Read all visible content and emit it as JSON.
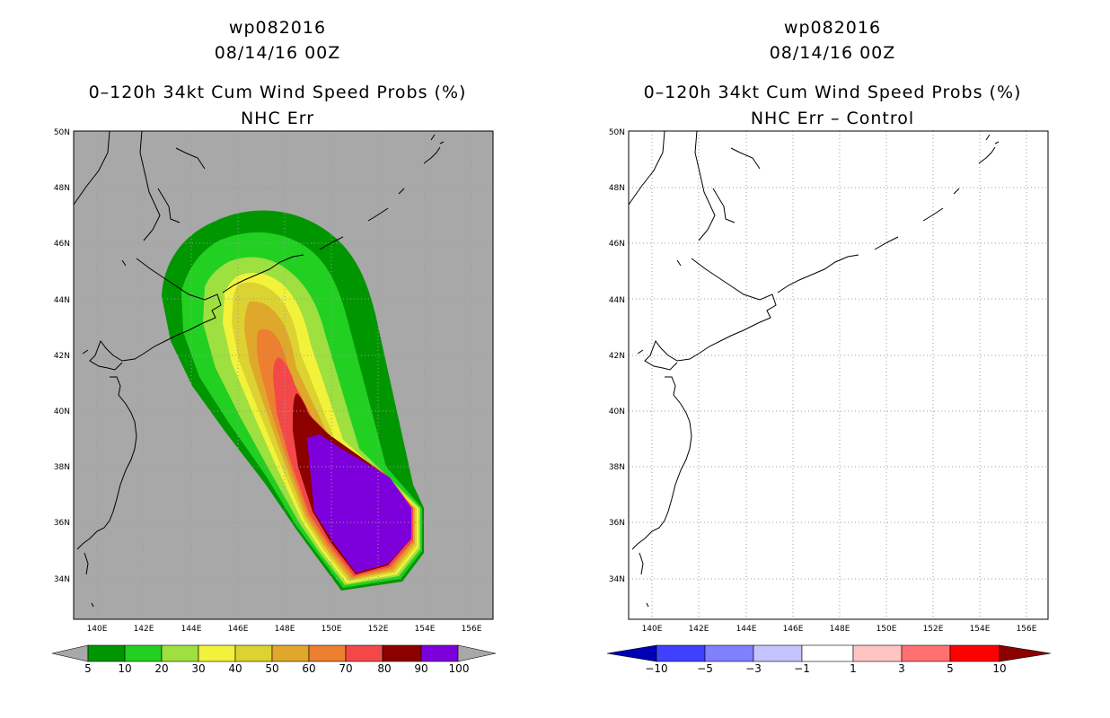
{
  "left": {
    "title_line1": "wp082016",
    "title_line2": "08/14/16 00Z",
    "title_line3": "0–120h 34kt Cum Wind Speed Probs (%)",
    "title_line4": "NHC Err",
    "colorbar": {
      "levels": [
        "5",
        "10",
        "20",
        "30",
        "40",
        "50",
        "60",
        "70",
        "80",
        "90",
        "100"
      ],
      "colors": [
        "#009600",
        "#22d022",
        "#9ee040",
        "#f2f23a",
        "#dcd232",
        "#e0a82a",
        "#ec8030",
        "#f44848",
        "#8c0000",
        "#7d00dc"
      ]
    }
  },
  "right": {
    "title_line1": "wp082016",
    "title_line2": "08/14/16 00Z",
    "title_line3": "0–120h 34kt Cum Wind Speed Probs (%)",
    "title_line4": "NHC Err – Control",
    "colorbar": {
      "levels": [
        "−10",
        "−5",
        "−3",
        "−1",
        "1",
        "3",
        "5",
        "10"
      ],
      "colors": [
        "#0000b4",
        "#4040ff",
        "#8080ff",
        "#c4c4ff",
        "#ffffff",
        "#ffc4c4",
        "#ff7070",
        "#ff0000",
        "#8c0000"
      ]
    }
  },
  "axes": {
    "lon_labels": [
      "140E",
      "142E",
      "144E",
      "146E",
      "148E",
      "150E",
      "152E",
      "154E",
      "156E"
    ],
    "lat_labels": [
      "50N",
      "48N",
      "46N",
      "44N",
      "42N",
      "40N",
      "38N",
      "36N",
      "34N"
    ]
  },
  "colors": {
    "land_bg": "#a8a8a8",
    "grid": "#9c9c9c"
  }
}
